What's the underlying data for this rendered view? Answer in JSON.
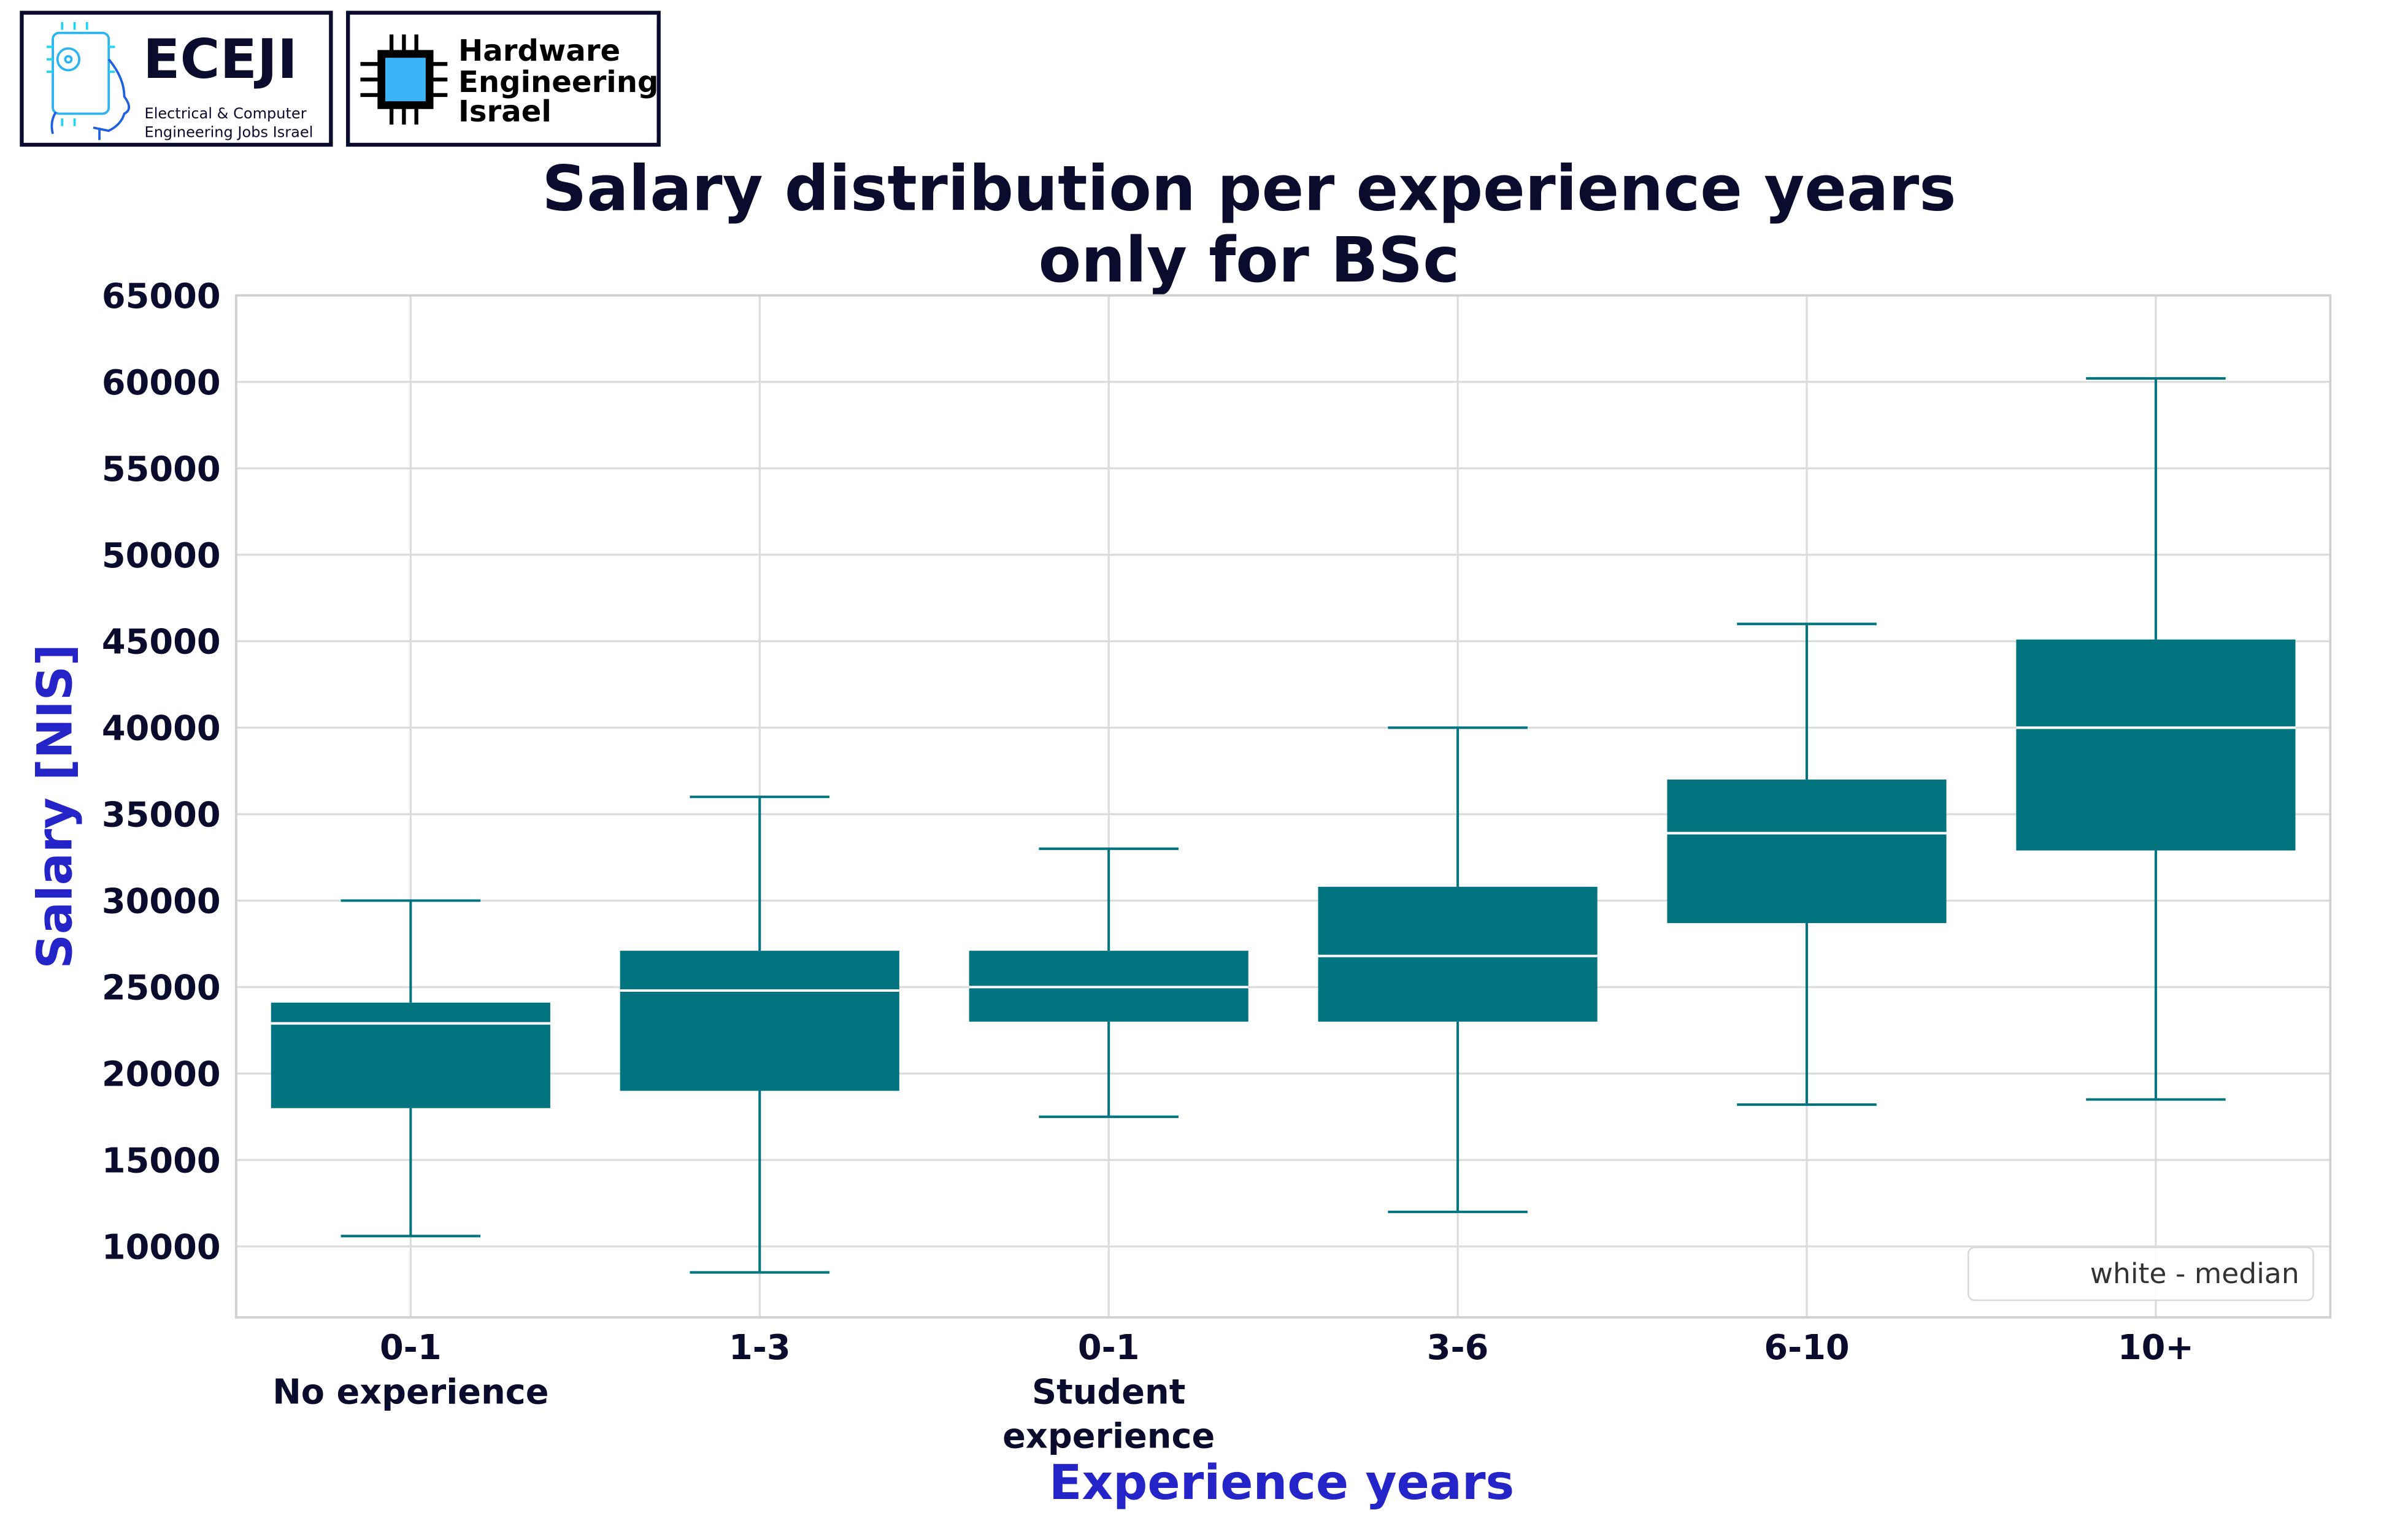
{
  "logos": {
    "eceji": {
      "name": "ECEJI",
      "subtitle_line1": "Electrical  &  Computer",
      "subtitle_line2": "Engineering Jobs Israel"
    },
    "hwe": {
      "line1": "Hardware",
      "line2": "Engineering",
      "line3": "Israel"
    }
  },
  "colors": {
    "box": "#017480",
    "median": "#ffffff",
    "title": "#0b0b2e",
    "axis_label": "#2424c8"
  },
  "chart_data": {
    "type": "box",
    "title_line1": "Salary distribution per experience years",
    "title_line2": "only for BSc",
    "xlabel": "Experience years",
    "ylabel": "Salary [NIS]",
    "ylim": [
      5900,
      65000
    ],
    "yticks": [
      10000,
      15000,
      20000,
      25000,
      30000,
      35000,
      40000,
      45000,
      50000,
      55000,
      60000,
      65000
    ],
    "ytick_labels": [
      "10000",
      "15000",
      "20000",
      "25000",
      "30000",
      "35000",
      "40000",
      "45000",
      "50000",
      "55000",
      "60000",
      "65000"
    ],
    "grid": true,
    "legend": {
      "label": "white - median",
      "placement": "bottom-right"
    },
    "categories": [
      {
        "line1": "0-1",
        "line2": "No experience",
        "line3": ""
      },
      {
        "line1": "1-3",
        "line2": "",
        "line3": ""
      },
      {
        "line1": "0-1",
        "line2": "Student",
        "line3": "experience"
      },
      {
        "line1": "3-6",
        "line2": "",
        "line3": ""
      },
      {
        "line1": "6-10",
        "line2": "",
        "line3": ""
      },
      {
        "line1": "10+",
        "line2": "",
        "line3": ""
      }
    ],
    "boxes": [
      {
        "whislo": 10600,
        "q1": 18000,
        "med": 22900,
        "q3": 24100,
        "whishi": 30000
      },
      {
        "whislo": 8500,
        "q1": 19000,
        "med": 24800,
        "q3": 27100,
        "whishi": 36000
      },
      {
        "whislo": 17500,
        "q1": 23000,
        "med": 25000,
        "q3": 27100,
        "whishi": 33000
      },
      {
        "whislo": 12000,
        "q1": 23000,
        "med": 26800,
        "q3": 30800,
        "whishi": 40000
      },
      {
        "whislo": 18200,
        "q1": 28700,
        "med": 33900,
        "q3": 37000,
        "whishi": 46000
      },
      {
        "whislo": 18500,
        "q1": 32900,
        "med": 40000,
        "q3": 45100,
        "whishi": 60200
      }
    ]
  }
}
